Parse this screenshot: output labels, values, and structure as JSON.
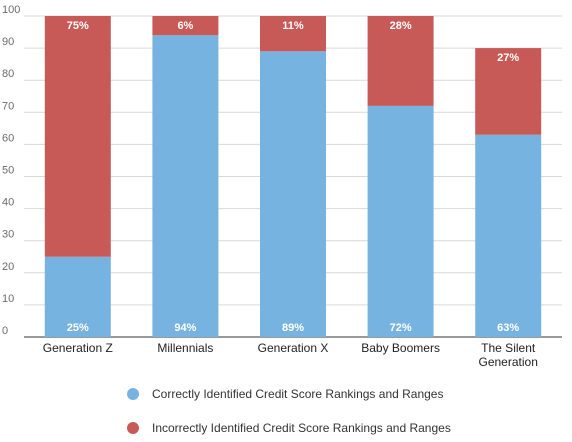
{
  "chart_data": {
    "type": "bar",
    "stacked": true,
    "categories": [
      "Generation Z",
      "Millennials",
      "Generation X",
      "Baby Boomers",
      "The Silent Generation"
    ],
    "series": [
      {
        "name": "Correctly Identified Credit Score Rankings and Ranges",
        "color": "#77b3e1",
        "values": [
          25,
          94,
          89,
          72,
          63
        ],
        "labels": [
          "25%",
          "94%",
          "89%",
          "72%",
          "63%"
        ]
      },
      {
        "name": "Incorrectly Identified Credit Score Rankings and Ranges",
        "color": "#c75a57",
        "values": [
          75,
          6,
          11,
          28,
          27
        ],
        "labels": [
          "75%",
          "6%",
          "11%",
          "28%",
          "27%"
        ]
      }
    ],
    "ylim": [
      0,
      100
    ],
    "yticks": [
      0,
      10,
      20,
      30,
      40,
      50,
      60,
      70,
      80,
      90,
      100
    ],
    "grid": true,
    "legend_position": "bottom"
  }
}
